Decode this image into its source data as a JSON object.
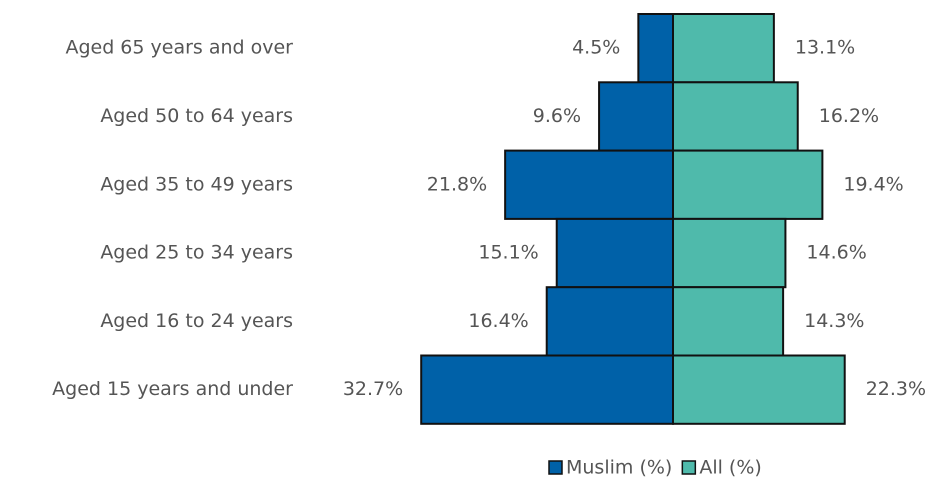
{
  "chart_data": {
    "type": "pyramid",
    "categories": [
      "Aged 65 years and over",
      "Aged 50 to 64 years",
      "Aged 35 to 49 years",
      "Aged 25 to 34 years",
      "Aged 16 to 24 years",
      "Aged 15 years and under"
    ],
    "series": [
      {
        "name": "Muslim (%)",
        "color": "#0061a8",
        "values": [
          4.5,
          9.6,
          21.8,
          15.1,
          16.4,
          32.7
        ],
        "value_labels": [
          "4.5%",
          "9.6%",
          "21.8%",
          "15.1%",
          "16.4%",
          "32.7%"
        ]
      },
      {
        "name": "All (%)",
        "color": "#4fbaab",
        "values": [
          13.1,
          16.2,
          19.4,
          14.6,
          14.3,
          22.3
        ],
        "value_labels": [
          "13.1%",
          "16.2%",
          "19.4%",
          "14.6%",
          "14.3%",
          "22.3%"
        ]
      }
    ],
    "legend": "bottom"
  }
}
